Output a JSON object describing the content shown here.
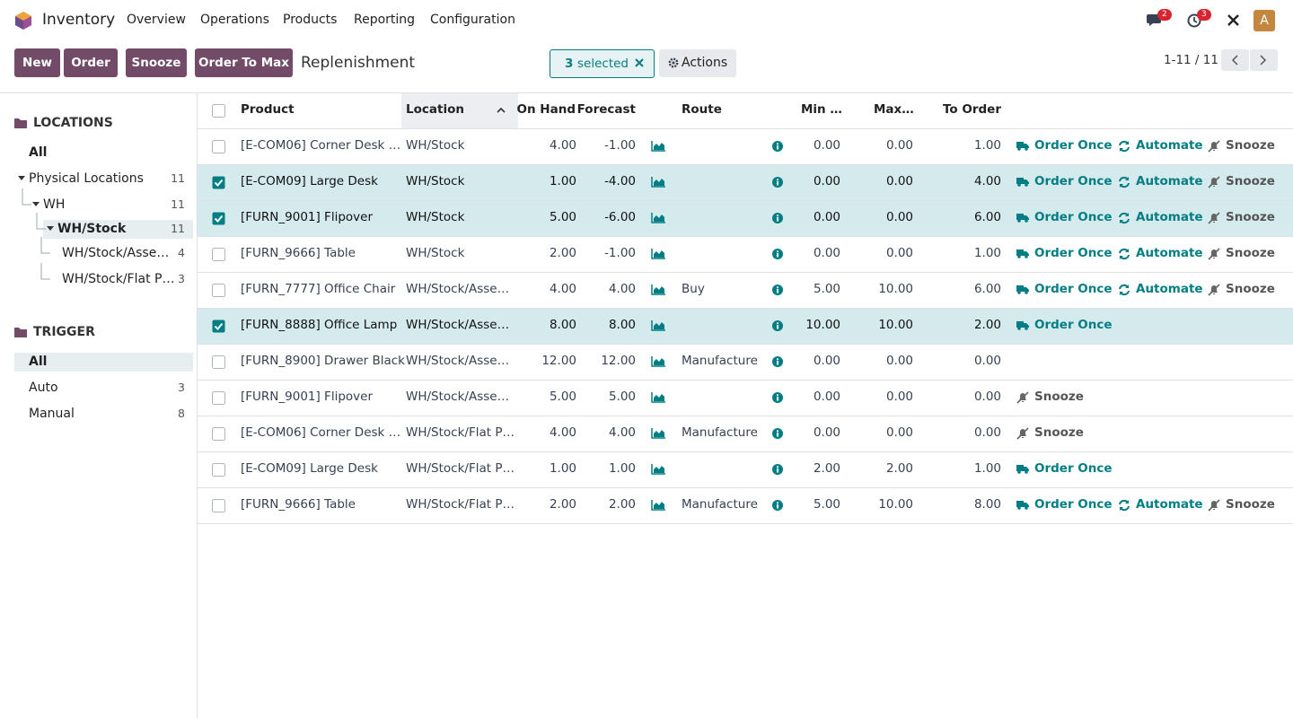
{
  "navbar": {
    "app_name": "Inventory",
    "menu": [
      "Overview",
      "Operations",
      "Products",
      "Reporting",
      "Configuration"
    ],
    "messages_badge": 2,
    "activities_badge": 3,
    "avatar": "A"
  },
  "control_panel": {
    "buttons": [
      "New",
      "Order",
      "Snooze",
      "Order To Max"
    ],
    "breadcrumb": "Replenishment",
    "selection": {
      "count": 3,
      "label": "selected"
    },
    "actions": "Actions",
    "pager": "1-11 / 11"
  },
  "sidebar": {
    "sections": [
      {
        "title": "LOCATIONS",
        "items": [
          {
            "label": "All"
          },
          {
            "label": "Physical Locations",
            "count": 11,
            "expanded": true,
            "children": [
              {
                "label": "WH",
                "count": 11,
                "expanded": true,
                "children": [
                  {
                    "label": "WH/Stock",
                    "count": 11,
                    "selected": true,
                    "expanded": true,
                    "children": [
                      {
                        "label": "WH/Stock/Asse…",
                        "count": 4
                      },
                      {
                        "label": "WH/Stock/Flat P…",
                        "count": 3
                      }
                    ]
                  }
                ]
              }
            ]
          }
        ]
      },
      {
        "title": "TRIGGER",
        "items": [
          {
            "label": "All",
            "selected": true
          },
          {
            "label": "Auto",
            "count": 3
          },
          {
            "label": "Manual",
            "count": 8
          }
        ]
      }
    ]
  },
  "table": {
    "columns": [
      "Product",
      "Location",
      "On Hand",
      "Forecast",
      "Route",
      "Min …",
      "Max…",
      "To Order"
    ],
    "sorted_column": 1,
    "rows": [
      {
        "product": "[E-COM06] Corner Desk …",
        "location": "WH/Stock",
        "on_hand": "4.00",
        "forecast": "-1.00",
        "route": null,
        "min": "0.00",
        "max": "0.00",
        "to_order": "1.00",
        "checked": false,
        "actions": {
          "order_once": "Order Once",
          "automate": "Automate",
          "snooze": "Snooze"
        }
      },
      {
        "product": "[E-COM09] Large Desk",
        "location": "WH/Stock",
        "on_hand": "1.00",
        "forecast": "-4.00",
        "route": null,
        "min": "0.00",
        "max": "0.00",
        "to_order": "4.00",
        "checked": true,
        "actions": {
          "order_once": "Order Once",
          "automate": "Automate",
          "snooze": "Snooze"
        }
      },
      {
        "product": "[FURN_9001] Flipover",
        "location": "WH/Stock",
        "on_hand": "5.00",
        "forecast": "-6.00",
        "route": null,
        "min": "0.00",
        "max": "0.00",
        "to_order": "6.00",
        "checked": true,
        "actions": {
          "order_once": "Order Once",
          "automate": "Automate",
          "snooze": "Snooze"
        }
      },
      {
        "product": "[FURN_9666] Table",
        "location": "WH/Stock",
        "on_hand": "2.00",
        "forecast": "-1.00",
        "route": null,
        "min": "0.00",
        "max": "0.00",
        "to_order": "1.00",
        "checked": false,
        "actions": {
          "order_once": "Order Once",
          "automate": "Automate",
          "snooze": "Snooze"
        }
      },
      {
        "product": "[FURN_7777] Office Chair",
        "location": "WH/Stock/Asse…",
        "on_hand": "4.00",
        "forecast": "4.00",
        "route": "Buy",
        "min": "5.00",
        "max": "10.00",
        "to_order": "6.00",
        "checked": false,
        "actions": {
          "order_once": "Order Once",
          "automate": "Automate",
          "snooze": "Snooze"
        }
      },
      {
        "product": "[FURN_8888] Office Lamp",
        "location": "WH/Stock/Asse…",
        "on_hand": "8.00",
        "forecast": "8.00",
        "route": null,
        "min": "10.00",
        "max": "10.00",
        "to_order": "2.00",
        "checked": true,
        "actions": {
          "order_once": "Order Once"
        }
      },
      {
        "product": "[FURN_8900] Drawer Black",
        "location": "WH/Stock/Asse…",
        "on_hand": "12.00",
        "forecast": "12.00",
        "route": "Manufacture",
        "min": "0.00",
        "max": "0.00",
        "to_order": "0.00",
        "checked": false
      },
      {
        "product": "[FURN_9001] Flipover",
        "location": "WH/Stock/Asse…",
        "on_hand": "5.00",
        "forecast": "5.00",
        "route": null,
        "min": "0.00",
        "max": "0.00",
        "to_order": "0.00",
        "checked": false,
        "actions": {
          "snooze": "Snooze"
        }
      },
      {
        "product": "[E-COM06] Corner Desk …",
        "location": "WH/Stock/Flat P…",
        "on_hand": "4.00",
        "forecast": "4.00",
        "route": "Manufacture",
        "min": "0.00",
        "max": "0.00",
        "to_order": "0.00",
        "checked": false,
        "actions": {
          "snooze": "Snooze"
        }
      },
      {
        "product": "[E-COM09] Large Desk",
        "location": "WH/Stock/Flat P…",
        "on_hand": "1.00",
        "forecast": "1.00",
        "route": null,
        "min": "2.00",
        "max": "2.00",
        "to_order": "1.00",
        "checked": false,
        "actions": {
          "order_once": "Order Once"
        }
      },
      {
        "product": "[FURN_9666] Table",
        "location": "WH/Stock/Flat P…",
        "on_hand": "2.00",
        "forecast": "2.00",
        "route": "Manufacture",
        "min": "5.00",
        "max": "10.00",
        "to_order": "8.00",
        "checked": false,
        "actions": {
          "order_once": "Order Once",
          "automate": "Automate",
          "snooze": "Snooze"
        }
      }
    ]
  }
}
